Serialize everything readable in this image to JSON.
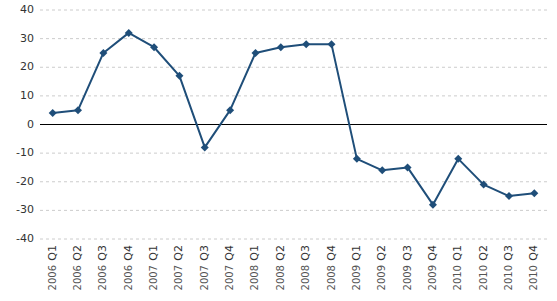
{
  "chart_data": {
    "type": "line",
    "categories": [
      "Q1",
      "Q2",
      "Q3",
      "Q4",
      "Q1",
      "Q2",
      "Q3",
      "Q4",
      "Q1",
      "Q2",
      "Q3",
      "Q4",
      "Q1",
      "Q2",
      "Q3",
      "Q4",
      "Q1",
      "Q2",
      "Q3",
      "Q4"
    ],
    "annotations": [
      "2006",
      "2006",
      "2006",
      "2006",
      "2007",
      "2007",
      "2007",
      "2007",
      "2008",
      "2008",
      "2008",
      "2008",
      "2009",
      "2009",
      "2009",
      "2009",
      "2010",
      "2010",
      "2010",
      "2010"
    ],
    "values": [
      4,
      5,
      25,
      32,
      27,
      17,
      -8,
      5,
      25,
      27,
      28,
      28,
      -12,
      -16,
      -15,
      -28,
      -12,
      -21,
      -25,
      -24
    ],
    "color": "#1f4e79",
    "marker": "diamond",
    "ylim": [
      -40,
      40
    ],
    "yticks": [
      -40,
      -30,
      -20,
      -10,
      0,
      10,
      20,
      30,
      40
    ],
    "grid": true
  }
}
